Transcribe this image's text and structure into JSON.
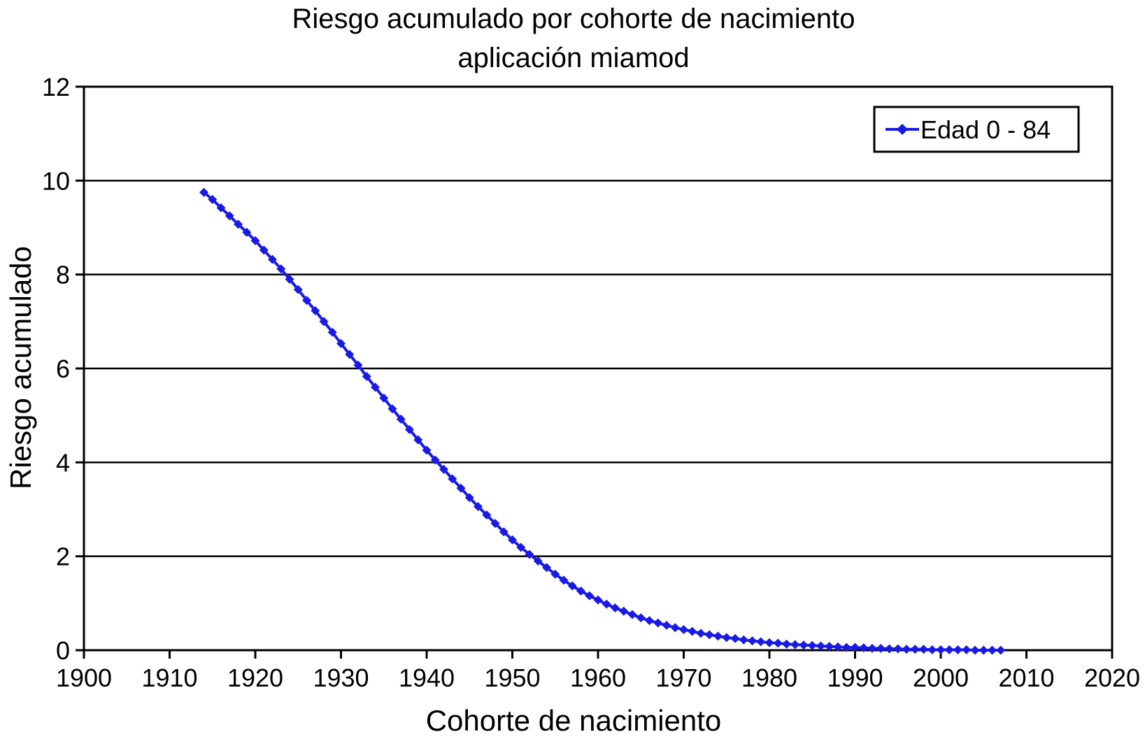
{
  "chart_data": {
    "type": "line",
    "title": "Riesgo acumulado por cohorte de nacimiento",
    "subtitle": "aplicación miamod",
    "xlabel": "Cohorte de nacimiento",
    "ylabel": "Riesgo acumulado",
    "xlim": [
      1900,
      2020
    ],
    "ylim": [
      0,
      12
    ],
    "xticks": [
      1900,
      1910,
      1920,
      1930,
      1940,
      1950,
      1960,
      1970,
      1980,
      1990,
      2000,
      2010,
      2020
    ],
    "yticks": [
      0,
      2,
      4,
      6,
      8,
      10,
      12
    ],
    "grid": "horizontal",
    "legend_position": "top-right",
    "colors": {
      "series": "#1a1ae6",
      "axis": "#000000",
      "grid": "#000000"
    },
    "series": [
      {
        "name": "Edad 0 - 84",
        "x": [
          1914,
          1915,
          1916,
          1917,
          1918,
          1919,
          1920,
          1921,
          1922,
          1923,
          1924,
          1925,
          1926,
          1927,
          1928,
          1929,
          1930,
          1931,
          1932,
          1933,
          1934,
          1935,
          1936,
          1937,
          1938,
          1939,
          1940,
          1941,
          1942,
          1943,
          1944,
          1945,
          1946,
          1947,
          1948,
          1949,
          1950,
          1951,
          1952,
          1953,
          1954,
          1955,
          1956,
          1957,
          1958,
          1959,
          1960,
          1961,
          1962,
          1963,
          1964,
          1965,
          1966,
          1967,
          1968,
          1969,
          1970,
          1971,
          1972,
          1973,
          1974,
          1975,
          1976,
          1977,
          1978,
          1979,
          1980,
          1981,
          1982,
          1983,
          1984,
          1985,
          1986,
          1987,
          1988,
          1989,
          1990,
          1991,
          1992,
          1993,
          1994,
          1995,
          1996,
          1997,
          1998,
          1999,
          2000,
          2001,
          2002,
          2003,
          2004,
          2005,
          2006,
          2007
        ],
        "y": [
          9.75,
          9.6,
          9.42,
          9.25,
          9.07,
          8.9,
          8.72,
          8.52,
          8.32,
          8.12,
          7.9,
          7.68,
          7.45,
          7.23,
          7.0,
          6.77,
          6.53,
          6.3,
          6.07,
          5.83,
          5.6,
          5.37,
          5.14,
          4.92,
          4.7,
          4.48,
          4.26,
          4.05,
          3.85,
          3.65,
          3.45,
          3.25,
          3.06,
          2.88,
          2.7,
          2.52,
          2.35,
          2.19,
          2.04,
          1.9,
          1.76,
          1.62,
          1.49,
          1.37,
          1.26,
          1.16,
          1.07,
          0.98,
          0.9,
          0.83,
          0.76,
          0.69,
          0.63,
          0.58,
          0.53,
          0.48,
          0.44,
          0.4,
          0.36,
          0.33,
          0.3,
          0.27,
          0.25,
          0.22,
          0.2,
          0.18,
          0.16,
          0.15,
          0.13,
          0.12,
          0.11,
          0.1,
          0.09,
          0.08,
          0.07,
          0.06,
          0.06,
          0.05,
          0.04,
          0.04,
          0.03,
          0.03,
          0.02,
          0.02,
          0.02,
          0.01,
          0.01,
          0.01,
          0.01,
          0.01,
          0.0,
          0.0,
          0.0,
          0.0
        ]
      }
    ]
  }
}
